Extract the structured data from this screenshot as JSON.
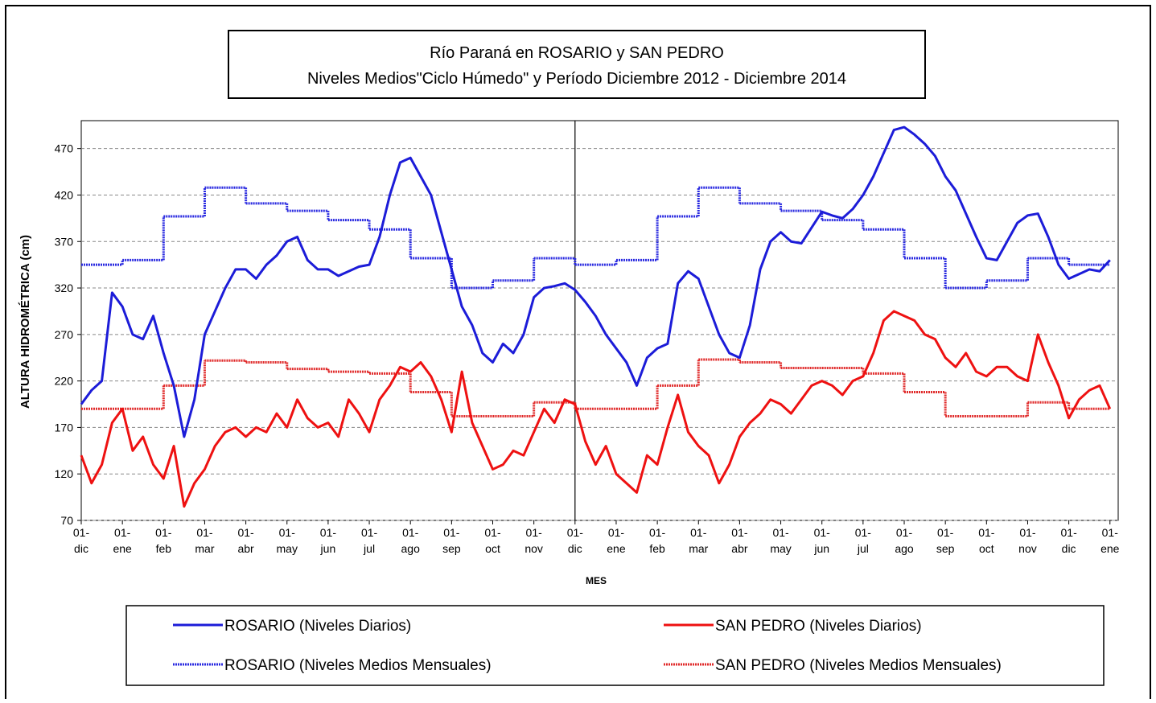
{
  "chart_data": {
    "type": "line",
    "title": "Río Paraná en ROSARIO y SAN PEDRO",
    "subtitle": "Niveles Medios\"Ciclo Húmedo\" y Período Diciembre 2012 - Diciembre 2014",
    "y_label": "ALTURA HIDROMÉTRICA (cm)",
    "x_label": "MES",
    "xlim": [
      0,
      25.2
    ],
    "ylim": [
      70,
      500
    ],
    "yticks": [
      70,
      120,
      170,
      220,
      270,
      320,
      370,
      420,
      470
    ],
    "xticks": [
      {
        "value": 0,
        "label": "01- dic"
      },
      {
        "value": 1,
        "label": "01- ene"
      },
      {
        "value": 2,
        "label": "01- feb"
      },
      {
        "value": 3,
        "label": "01- mar"
      },
      {
        "value": 4,
        "label": "01- abr"
      },
      {
        "value": 5,
        "label": "01- may"
      },
      {
        "value": 6,
        "label": "01- jun"
      },
      {
        "value": 7,
        "label": "01- jul"
      },
      {
        "value": 8,
        "label": "01- ago"
      },
      {
        "value": 9,
        "label": "01- sep"
      },
      {
        "value": 10,
        "label": "01- oct"
      },
      {
        "value": 11,
        "label": "01- nov"
      },
      {
        "value": 12,
        "label": "01- dic"
      },
      {
        "value": 13,
        "label": "01- ene"
      },
      {
        "value": 14,
        "label": "01- feb"
      },
      {
        "value": 15,
        "label": "01- mar"
      },
      {
        "value": 16,
        "label": "01- abr"
      },
      {
        "value": 17,
        "label": "01- may"
      },
      {
        "value": 18,
        "label": "01- jun"
      },
      {
        "value": 19,
        "label": "01- jul"
      },
      {
        "value": 20,
        "label": "01- ago"
      },
      {
        "value": 21,
        "label": "01- sep"
      },
      {
        "value": 22,
        "label": "01- oct"
      },
      {
        "value": 23,
        "label": "01- nov"
      },
      {
        "value": 24,
        "label": "01- dic"
      },
      {
        "value": 25,
        "label": "01- ene"
      }
    ],
    "grid": true,
    "divider_x": 12,
    "x": [
      0,
      0.25,
      0.5,
      0.75,
      1,
      1.25,
      1.5,
      1.75,
      2,
      2.25,
      2.5,
      2.75,
      3,
      3.25,
      3.5,
      3.75,
      4,
      4.25,
      4.5,
      4.75,
      5,
      5.25,
      5.5,
      5.75,
      6,
      6.25,
      6.5,
      6.75,
      7,
      7.25,
      7.5,
      7.75,
      8,
      8.25,
      8.5,
      8.75,
      9,
      9.25,
      9.5,
      9.75,
      10,
      10.25,
      10.5,
      10.75,
      11,
      11.25,
      11.5,
      11.75,
      12,
      12.25,
      12.5,
      12.75,
      13,
      13.25,
      13.5,
      13.75,
      14,
      14.25,
      14.5,
      14.75,
      15,
      15.25,
      15.5,
      15.75,
      16,
      16.25,
      16.5,
      16.75,
      17,
      17.25,
      17.5,
      17.75,
      18,
      18.25,
      18.5,
      18.75,
      19,
      19.25,
      19.5,
      19.75,
      20,
      20.25,
      20.5,
      20.75,
      21,
      21.25,
      21.5,
      21.75,
      22,
      22.25,
      22.5,
      22.75,
      23,
      23.25,
      23.5,
      23.75,
      24,
      24.25,
      24.5,
      24.75,
      25
    ],
    "series": [
      {
        "name": "ROSARIO (Niveles Diarios)",
        "color": "#1c1cd8",
        "step": false,
        "values": [
          195,
          210,
          220,
          315,
          300,
          270,
          265,
          290,
          250,
          215,
          160,
          200,
          270,
          295,
          320,
          340,
          340,
          330,
          345,
          355,
          370,
          375,
          350,
          340,
          340,
          333,
          338,
          343,
          345,
          375,
          420,
          455,
          460,
          440,
          420,
          380,
          340,
          300,
          280,
          250,
          240,
          260,
          250,
          270,
          310,
          320,
          322,
          325,
          318,
          305,
          290,
          270,
          255,
          240,
          215,
          245,
          255,
          260,
          325,
          338,
          330,
          300,
          270,
          250,
          245,
          280,
          340,
          370,
          380,
          370,
          368,
          385,
          402,
          398,
          395,
          405,
          420,
          440,
          465,
          490,
          493,
          485,
          475,
          462,
          440,
          425,
          400,
          375,
          352,
          350,
          370,
          390,
          398,
          400,
          375,
          345,
          330,
          335,
          340,
          338,
          350
        ]
      },
      {
        "name": "SAN PEDRO (Niveles Diarios)",
        "color": "#ee1111",
        "step": false,
        "values": [
          140,
          110,
          130,
          175,
          190,
          145,
          160,
          130,
          115,
          150,
          85,
          110,
          125,
          150,
          165,
          170,
          160,
          170,
          165,
          185,
          170,
          200,
          180,
          170,
          175,
          160,
          200,
          185,
          165,
          200,
          215,
          235,
          230,
          240,
          225,
          200,
          165,
          230,
          175,
          150,
          125,
          130,
          145,
          140,
          165,
          190,
          175,
          200,
          195,
          155,
          130,
          150,
          120,
          110,
          100,
          140,
          130,
          170,
          205,
          165,
          150,
          140,
          110,
          130,
          160,
          175,
          185,
          200,
          195,
          185,
          200,
          215,
          220,
          215,
          205,
          220,
          225,
          250,
          285,
          295,
          290,
          285,
          270,
          265,
          245,
          235,
          250,
          230,
          225,
          235,
          235,
          225,
          220,
          270,
          240,
          215,
          180,
          200,
          210,
          215,
          190
        ]
      },
      {
        "name": "ROSARIO (Niveles Medios Mensuales)",
        "color": "#2a2ae0",
        "step": true,
        "x": [
          0,
          1,
          2,
          3,
          4,
          5,
          6,
          7,
          8,
          9,
          10,
          11,
          12,
          13,
          14,
          15,
          16,
          17,
          18,
          19,
          20,
          21,
          22,
          23,
          24
        ],
        "values": [
          345,
          350,
          397,
          428,
          411,
          403,
          393,
          383,
          352,
          320,
          328,
          352,
          345,
          350,
          397,
          428,
          411,
          403,
          393,
          383,
          352,
          320,
          328,
          352,
          345
        ]
      },
      {
        "name": "SAN PEDRO (Niveles Medios Mensuales)",
        "color": "#e02a2a",
        "step": true,
        "x": [
          0,
          1,
          2,
          3,
          4,
          5,
          6,
          7,
          8,
          9,
          10,
          11,
          12,
          13,
          14,
          15,
          16,
          17,
          18,
          19,
          20,
          21,
          22,
          23,
          24
        ],
        "values": [
          190,
          190,
          215,
          242,
          240,
          233,
          230,
          228,
          208,
          182,
          182,
          197,
          190,
          190,
          215,
          243,
          240,
          234,
          234,
          228,
          208,
          182,
          182,
          197,
          190
        ]
      }
    ]
  }
}
